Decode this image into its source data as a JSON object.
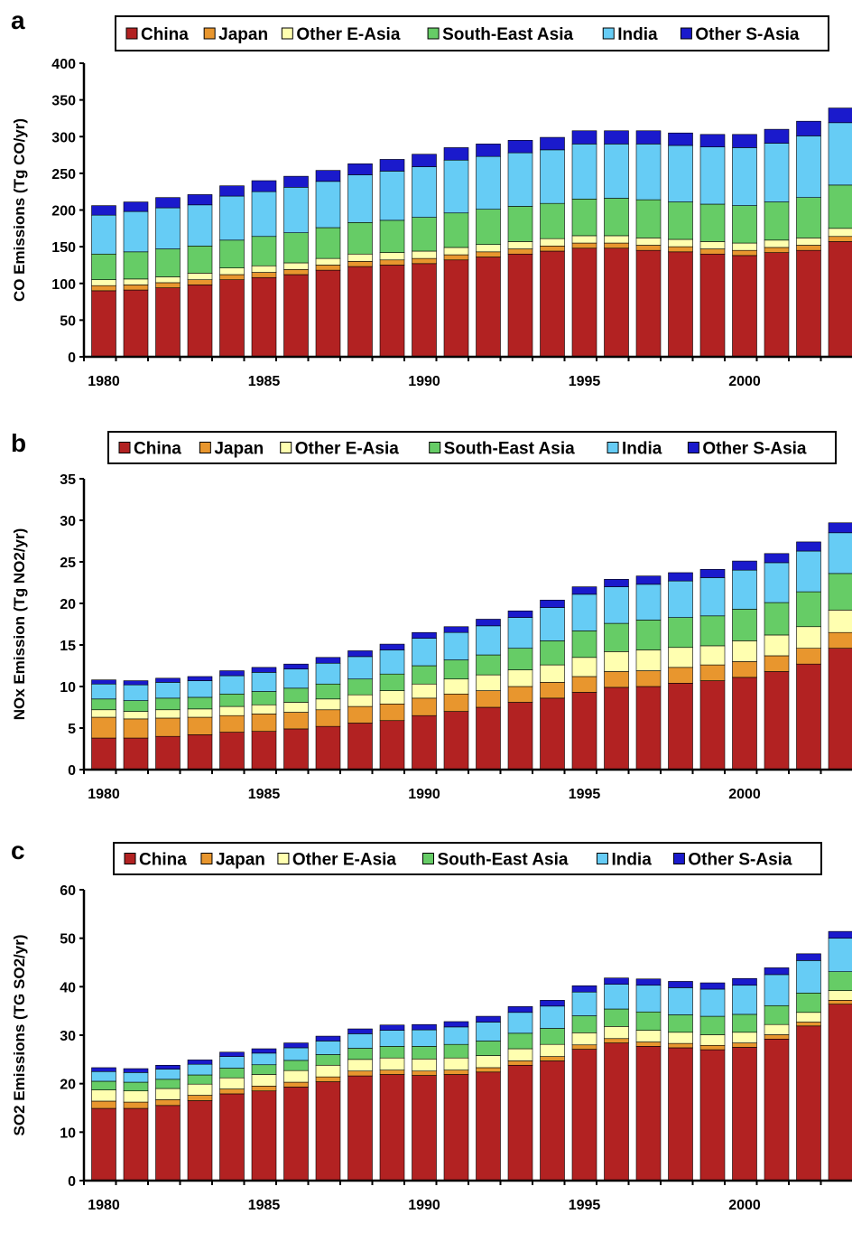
{
  "colors": {
    "China": "#b22222",
    "Japan": "#e8962e",
    "Other E-Asia": "#ffffb0",
    "South-East Asia": "#66cc66",
    "India": "#66ccf5",
    "Other S-Asia": "#1a1acc"
  },
  "chart_data": [
    {
      "panel": "a",
      "type": "bar",
      "stacked": true,
      "ylabel": "CO Emissions (Tg CO/yr)",
      "ylim": [
        0,
        400
      ],
      "yticks": [
        0,
        50,
        100,
        150,
        200,
        250,
        300,
        350,
        400
      ],
      "x": [
        1980,
        1981,
        1982,
        1983,
        1984,
        1985,
        1986,
        1987,
        1988,
        1989,
        1990,
        1991,
        1992,
        1993,
        1994,
        1995,
        1996,
        1997,
        1998,
        1999,
        2000,
        2001,
        2002,
        2003
      ],
      "xtick_labels": [
        "1980",
        "1985",
        "1990",
        "1995",
        "2000"
      ],
      "legend": [
        "China",
        "Japan",
        "Other E-Asia",
        "South-East Asia",
        "India",
        "Other S-Asia"
      ],
      "series": [
        {
          "name": "China",
          "values": [
            90,
            91,
            94,
            98,
            105,
            108,
            112,
            118,
            123,
            125,
            127,
            132,
            136,
            140,
            144,
            148,
            148,
            145,
            143,
            140,
            138,
            142,
            145,
            157
          ]
        },
        {
          "name": "Japan",
          "values": [
            7,
            7,
            7,
            7,
            7,
            7,
            7,
            7,
            7,
            7,
            7,
            7,
            7,
            7,
            7,
            7,
            7,
            7,
            7,
            7,
            7,
            7,
            7,
            7
          ]
        },
        {
          "name": "Other E-Asia",
          "values": [
            8,
            8,
            8,
            9,
            9,
            9,
            9,
            9,
            10,
            10,
            10,
            10,
            10,
            10,
            10,
            10,
            10,
            10,
            10,
            10,
            10,
            10,
            10,
            11
          ]
        },
        {
          "name": "South-East Asia",
          "values": [
            35,
            37,
            38,
            37,
            38,
            40,
            41,
            42,
            43,
            44,
            46,
            47,
            48,
            48,
            48,
            50,
            51,
            52,
            51,
            51,
            51,
            52,
            55,
            59
          ]
        },
        {
          "name": "India",
          "values": [
            53,
            55,
            56,
            56,
            60,
            61,
            62,
            63,
            65,
            67,
            69,
            72,
            72,
            73,
            73,
            75,
            74,
            76,
            77,
            78,
            79,
            80,
            84,
            85
          ]
        },
        {
          "name": "Other S-Asia",
          "values": [
            13,
            13,
            14,
            14,
            14,
            15,
            15,
            15,
            15,
            16,
            17,
            17,
            17,
            17,
            17,
            18,
            18,
            18,
            17,
            17,
            18,
            19,
            20,
            20
          ]
        }
      ]
    },
    {
      "panel": "b",
      "type": "bar",
      "stacked": true,
      "ylabel": "NOx Emission (Tg NO2/yr)",
      "ylim": [
        0,
        35
      ],
      "yticks": [
        0,
        5,
        10,
        15,
        20,
        25,
        30,
        35
      ],
      "x": [
        1980,
        1981,
        1982,
        1983,
        1984,
        1985,
        1986,
        1987,
        1988,
        1989,
        1990,
        1991,
        1992,
        1993,
        1994,
        1995,
        1996,
        1997,
        1998,
        1999,
        2000,
        2001,
        2002,
        2003
      ],
      "xtick_labels": [
        "1980",
        "1985",
        "1990",
        "1995",
        "2000"
      ],
      "legend": [
        "China",
        "Japan",
        "Other E-Asia",
        "South-East Asia",
        "India",
        "Other S-Asia"
      ],
      "series": [
        {
          "name": "China",
          "values": [
            3.8,
            3.8,
            4.0,
            4.2,
            4.5,
            4.6,
            4.9,
            5.2,
            5.6,
            5.9,
            6.5,
            7.0,
            7.5,
            8.1,
            8.6,
            9.3,
            9.9,
            10.0,
            10.4,
            10.7,
            11.1,
            11.8,
            12.7,
            14.6
          ]
        },
        {
          "name": "Japan",
          "values": [
            2.5,
            2.3,
            2.2,
            2.1,
            2.0,
            2.1,
            2.0,
            2.0,
            2.0,
            2.0,
            2.1,
            2.1,
            2.0,
            1.9,
            1.9,
            1.9,
            1.9,
            1.9,
            1.9,
            1.9,
            1.9,
            1.9,
            1.9,
            1.9
          ]
        },
        {
          "name": "Other E-Asia",
          "values": [
            0.9,
            0.9,
            1.0,
            1.0,
            1.1,
            1.1,
            1.2,
            1.3,
            1.4,
            1.6,
            1.7,
            1.8,
            1.9,
            2.0,
            2.1,
            2.3,
            2.4,
            2.5,
            2.4,
            2.3,
            2.5,
            2.5,
            2.6,
            2.7
          ]
        },
        {
          "name": "South-East Asia",
          "values": [
            1.3,
            1.3,
            1.4,
            1.4,
            1.5,
            1.6,
            1.7,
            1.8,
            1.9,
            2.0,
            2.2,
            2.3,
            2.4,
            2.6,
            2.9,
            3.2,
            3.4,
            3.6,
            3.6,
            3.6,
            3.8,
            3.9,
            4.2,
            4.4
          ]
        },
        {
          "name": "India",
          "values": [
            1.8,
            1.9,
            1.9,
            2.0,
            2.2,
            2.3,
            2.3,
            2.5,
            2.7,
            2.9,
            3.3,
            3.3,
            3.5,
            3.7,
            4.0,
            4.4,
            4.4,
            4.3,
            4.4,
            4.6,
            4.7,
            4.8,
            4.9,
            4.9
          ]
        },
        {
          "name": "Other S-Asia",
          "values": [
            0.5,
            0.5,
            0.5,
            0.5,
            0.6,
            0.6,
            0.6,
            0.7,
            0.7,
            0.7,
            0.7,
            0.7,
            0.8,
            0.8,
            0.9,
            0.9,
            0.9,
            1.0,
            1.0,
            1.0,
            1.1,
            1.1,
            1.1,
            1.2
          ]
        }
      ]
    },
    {
      "panel": "c",
      "type": "bar",
      "stacked": true,
      "ylabel": "SO2 Emissions (TG SO2/yr)",
      "ylim": [
        0,
        60
      ],
      "yticks": [
        0,
        10,
        20,
        30,
        40,
        50,
        60
      ],
      "x": [
        1980,
        1981,
        1982,
        1983,
        1984,
        1985,
        1986,
        1987,
        1988,
        1989,
        1990,
        1991,
        1992,
        1993,
        1994,
        1995,
        1996,
        1997,
        1998,
        1999,
        2000,
        2001,
        2002,
        2003
      ],
      "xtick_labels": [
        "1980",
        "1985",
        "1990",
        "1995",
        "2000"
      ],
      "legend": [
        "China",
        "Japan",
        "Other E-Asia",
        "South-East Asia",
        "India",
        "Other S-Asia"
      ],
      "series": [
        {
          "name": "China",
          "values": [
            14.9,
            14.9,
            15.5,
            16.5,
            17.9,
            18.5,
            19.3,
            20.4,
            21.6,
            21.9,
            21.7,
            21.9,
            22.4,
            23.8,
            24.7,
            27.1,
            28.4,
            27.7,
            27.4,
            27.0,
            27.5,
            29.2,
            31.9,
            36.4
          ]
        },
        {
          "name": "Japan",
          "values": [
            1.5,
            1.3,
            1.2,
            1.1,
            1.0,
            1.0,
            1.0,
            1.0,
            1.0,
            0.9,
            0.9,
            0.9,
            0.9,
            0.9,
            0.9,
            0.9,
            0.9,
            0.9,
            0.9,
            0.9,
            0.9,
            0.9,
            0.8,
            0.8
          ]
        },
        {
          "name": "Other E-Asia",
          "values": [
            2.3,
            2.3,
            2.3,
            2.3,
            2.3,
            2.4,
            2.4,
            2.4,
            2.4,
            2.5,
            2.5,
            2.5,
            2.5,
            2.5,
            2.5,
            2.5,
            2.5,
            2.4,
            2.3,
            2.2,
            2.2,
            2.1,
            2.0,
            2.0
          ]
        },
        {
          "name": "South-East Asia",
          "values": [
            1.8,
            1.8,
            1.9,
            1.9,
            2.0,
            2.0,
            2.1,
            2.2,
            2.3,
            2.4,
            2.6,
            2.8,
            3.0,
            3.2,
            3.3,
            3.5,
            3.6,
            3.8,
            3.6,
            3.8,
            3.7,
            3.9,
            4.0,
            3.9
          ]
        },
        {
          "name": "India",
          "values": [
            2.0,
            2.0,
            2.1,
            2.2,
            2.4,
            2.4,
            2.6,
            2.8,
            3.0,
            3.3,
            3.4,
            3.6,
            3.9,
            4.3,
            4.6,
            4.9,
            5.1,
            5.5,
            5.6,
            5.6,
            6.0,
            6.4,
            6.7,
            6.9
          ]
        },
        {
          "name": "Other S-Asia",
          "values": [
            0.8,
            0.8,
            0.8,
            0.9,
            0.9,
            0.9,
            1.0,
            1.0,
            1.0,
            1.1,
            1.1,
            1.1,
            1.2,
            1.2,
            1.2,
            1.3,
            1.3,
            1.3,
            1.3,
            1.3,
            1.4,
            1.4,
            1.4,
            1.4
          ]
        }
      ]
    }
  ]
}
